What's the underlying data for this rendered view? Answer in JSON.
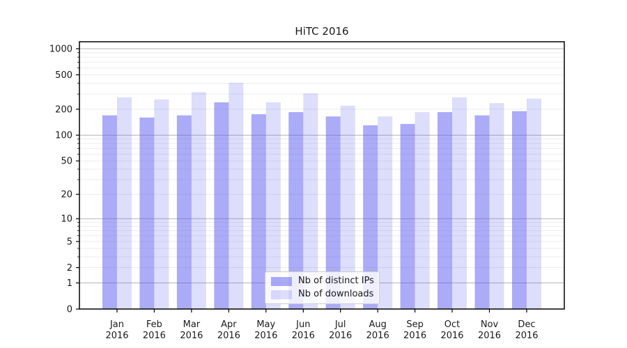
{
  "chart_data": {
    "type": "bar",
    "title": "HiTC 2016",
    "categories": [
      "Jan 2016",
      "Feb 2016",
      "Mar 2016",
      "Apr 2016",
      "May 2016",
      "Jun 2016",
      "Jul 2016",
      "Aug 2016",
      "Sep 2016",
      "Oct 2016",
      "Nov 2016",
      "Dec 2016"
    ],
    "series": [
      {
        "name": "Nb of distinct IPs",
        "color": "rgba(87,87,240,0.5)",
        "values": [
          170,
          160,
          170,
          240,
          175,
          185,
          165,
          130,
          135,
          185,
          170,
          190
        ]
      },
      {
        "name": "Nb of downloads",
        "color": "rgba(87,87,240,0.2)",
        "values": [
          275,
          260,
          315,
          405,
          240,
          305,
          220,
          165,
          185,
          275,
          235,
          265
        ]
      }
    ],
    "xlabel": "",
    "ylabel": "",
    "yscale": "log1p",
    "yticks": [
      0,
      1,
      2,
      5,
      10,
      20,
      50,
      100,
      200,
      500,
      1000
    ],
    "ylim": [
      0,
      1200
    ],
    "grid": "on",
    "legend_position": "lower center",
    "colors": {
      "grid_major": "#b3b3b3",
      "grid_minor": "#ececec",
      "spine": "#000000",
      "text": "#1a1a1a"
    }
  }
}
